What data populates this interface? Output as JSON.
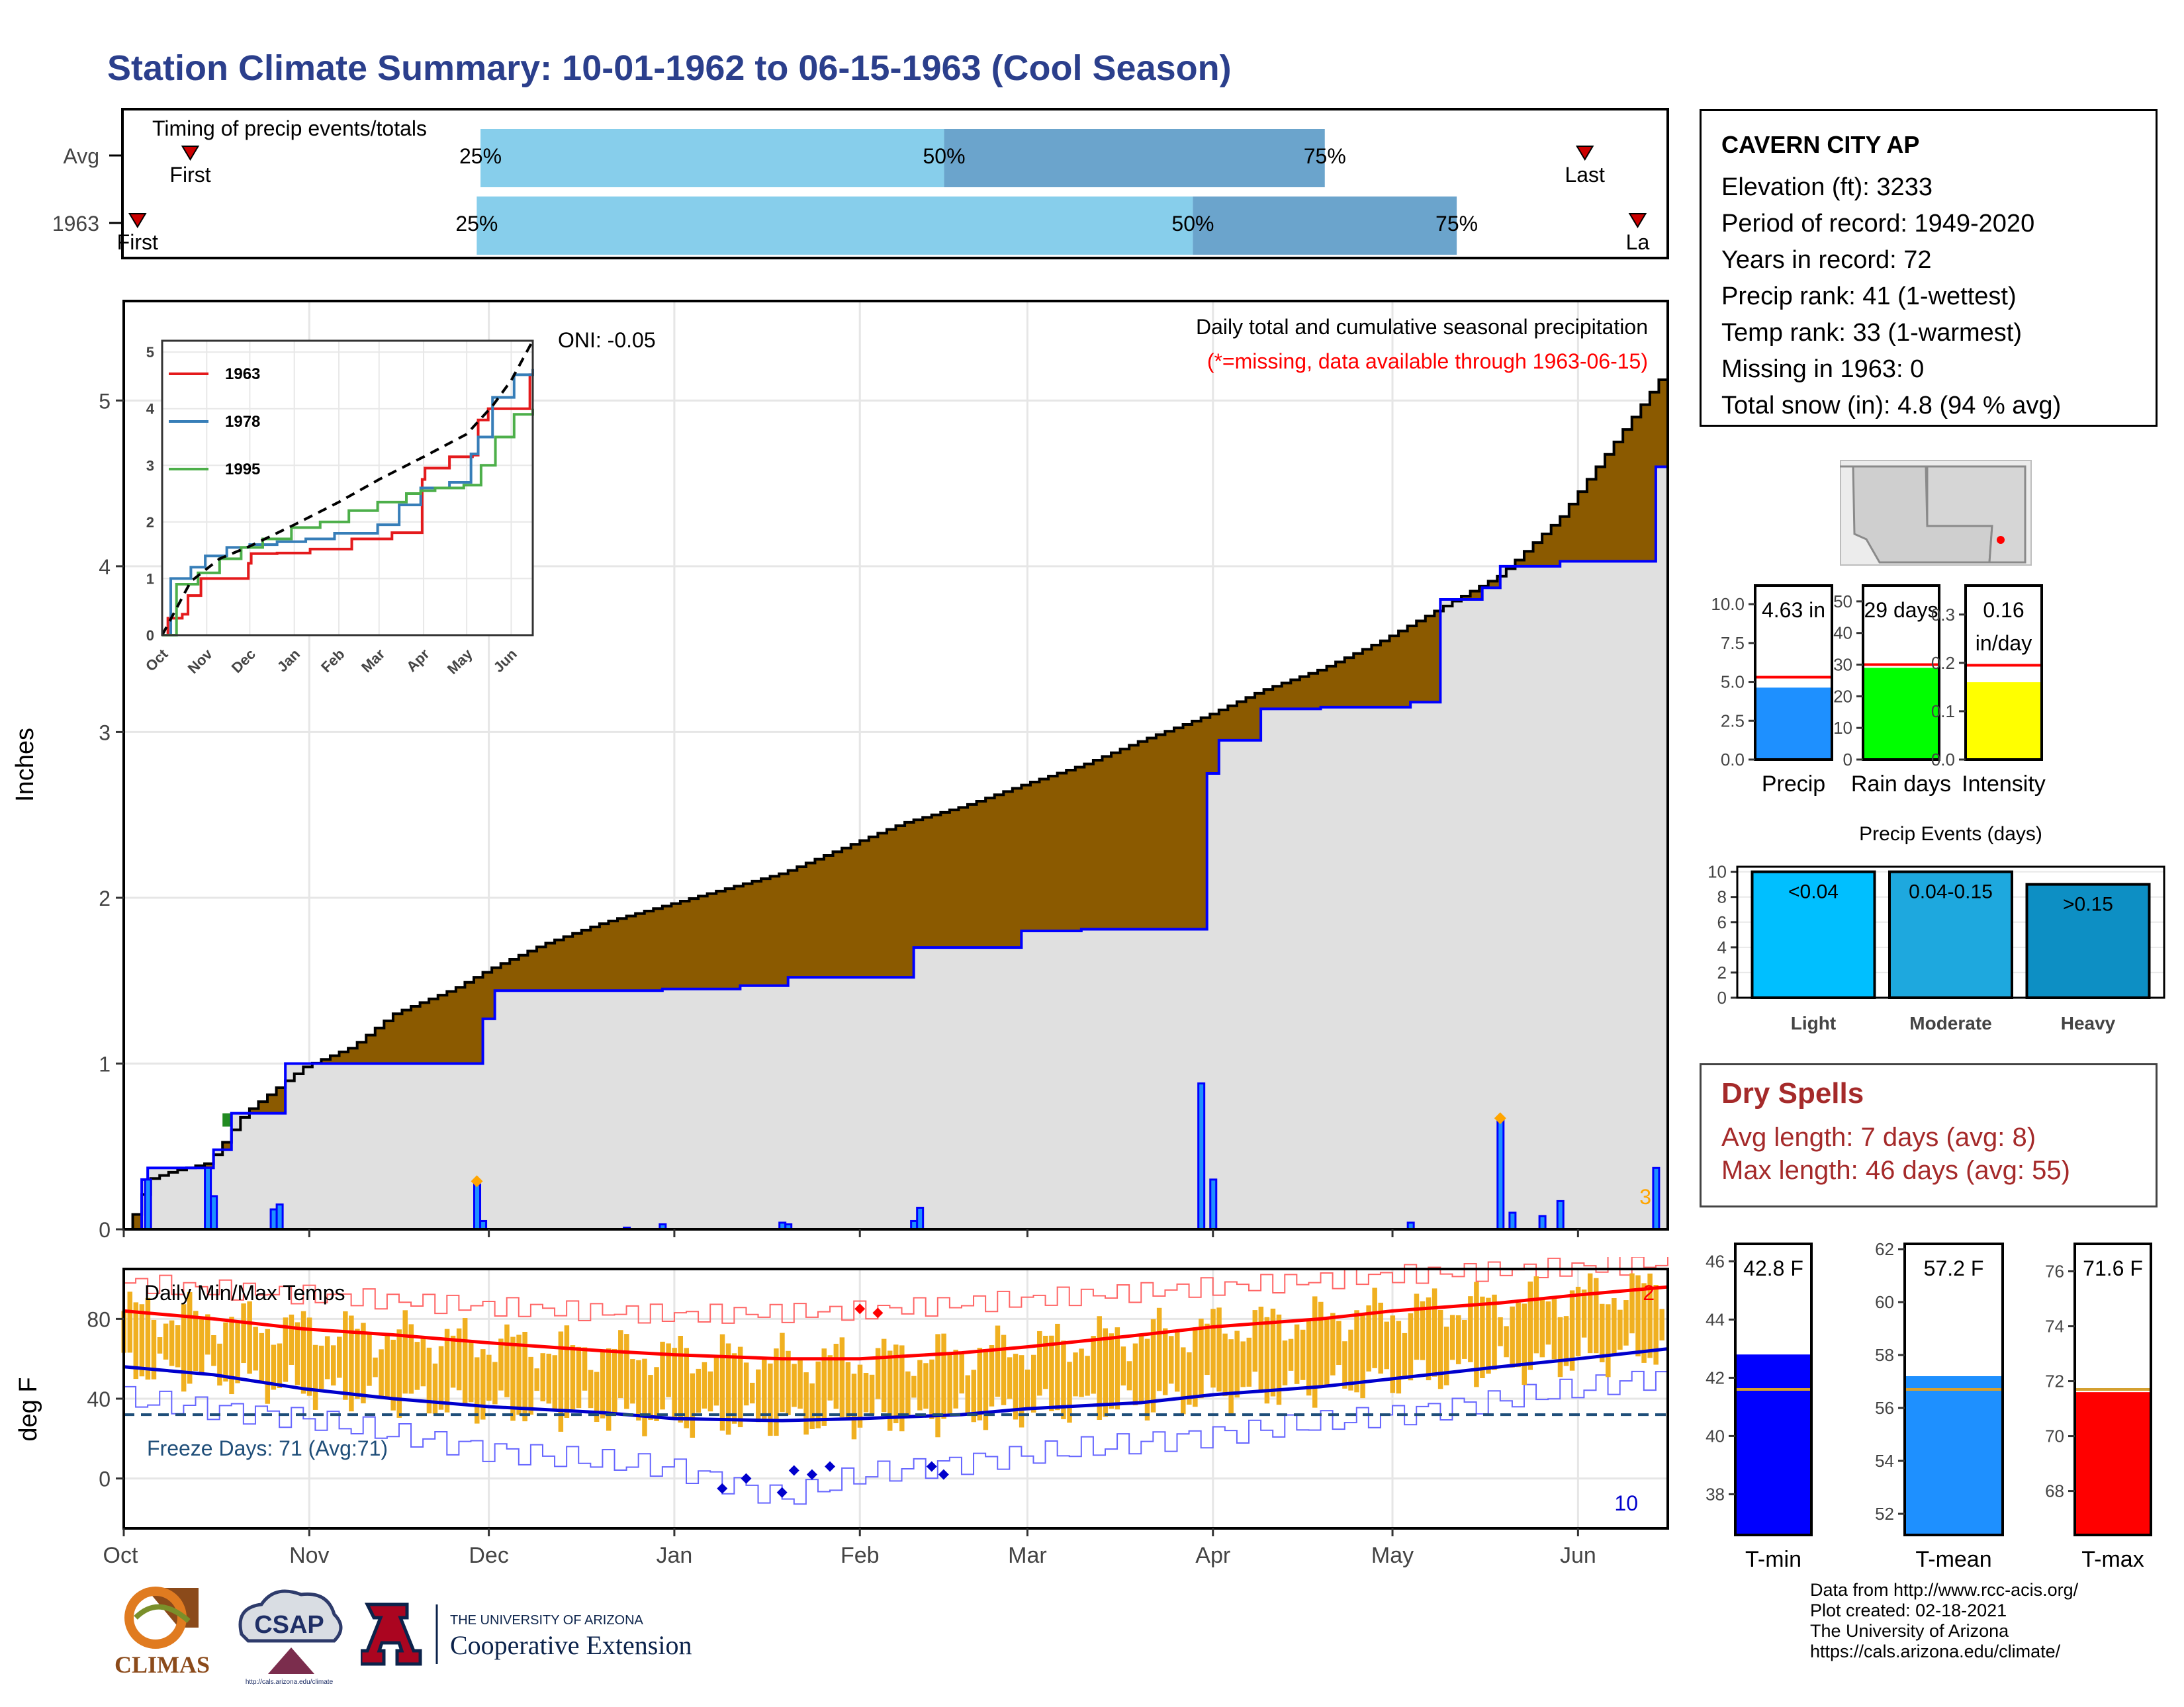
{
  "title": "Station Climate Summary: 10-01-1962 to 06-15-1963 (Cool Season)",
  "timing": {
    "title": "Timing of precip events/totals",
    "rows": [
      {
        "label": "Avg",
        "p25_day": 95,
        "p50_day": 218,
        "p75_day": 319,
        "first_day": 18,
        "last_day": 388,
        "first_label": "First",
        "last_label": "Last"
      },
      {
        "label": "1963",
        "p25_day": 94,
        "p50_day": 284,
        "p75_day": 354,
        "first_day": 4,
        "last_day": 402,
        "first_label": "First",
        "last_label": "La"
      }
    ],
    "pct_labels": [
      "25%",
      "50%",
      "75%"
    ]
  },
  "chart_data": [
    {
      "type": "area",
      "name": "cumulative-precip",
      "title": "Daily total and cumulative seasonal precipitation",
      "subtitle": "(*=missing, data available through 1963-06-15)",
      "ylabel": "Inches",
      "ylim": [
        0,
        5.6
      ],
      "yticks": [
        0,
        1,
        2,
        3,
        4,
        5
      ],
      "xlim_days": [
        0,
        258
      ],
      "x_month_labels": [
        "Oct",
        "Nov",
        "Dec",
        "Jan",
        "Feb",
        "Mar",
        "Apr",
        "May",
        "Jun"
      ],
      "x_month_days": [
        0,
        31,
        61,
        92,
        123,
        151,
        182,
        212,
        243
      ],
      "oni_label": "ONI: -0.05",
      "corner_count": "3",
      "avg_cumulative": {
        "x": [
          0,
          2,
          4,
          8,
          14,
          20,
          30,
          38,
          45,
          55,
          61,
          70,
          80,
          90,
          100,
          110,
          120,
          130,
          140,
          150,
          160,
          170,
          181,
          190,
          200,
          210,
          220,
          230,
          240,
          250,
          258
        ],
        "y": [
          0,
          0.12,
          0.3,
          0.35,
          0.4,
          0.7,
          0.98,
          1.1,
          1.3,
          1.45,
          1.57,
          1.72,
          1.85,
          1.95,
          2.05,
          2.15,
          2.3,
          2.45,
          2.55,
          2.68,
          2.8,
          2.95,
          3.1,
          3.25,
          3.38,
          3.55,
          3.75,
          3.95,
          4.3,
          4.8,
          5.2
        ]
      },
      "season_cumulative": {
        "x": [
          0,
          3,
          4,
          14,
          15,
          17,
          18,
          26,
          27,
          59,
          60,
          62,
          80,
          90,
          103,
          111,
          130,
          132,
          150,
          160,
          180,
          181,
          183,
          190,
          200,
          215,
          216,
          220,
          227,
          230,
          240,
          250,
          255,
          256,
          258
        ],
        "y": [
          0,
          0.3,
          0.37,
          0.37,
          0.48,
          0.48,
          0.7,
          0.7,
          1.0,
          1.0,
          1.27,
          1.44,
          1.44,
          1.45,
          1.47,
          1.52,
          1.52,
          1.7,
          1.8,
          1.81,
          1.81,
          2.75,
          2.95,
          3.14,
          3.15,
          3.18,
          3.18,
          3.8,
          3.87,
          4.0,
          4.03,
          4.03,
          4.03,
          4.6,
          4.6
        ]
      },
      "daily_bars": {
        "x": [
          4,
          14,
          15,
          25,
          26,
          59,
          60,
          84,
          90,
          110,
          111,
          132,
          133,
          180,
          182,
          215,
          230,
          232,
          237,
          240,
          256
        ],
        "y": [
          0.3,
          0.37,
          0.2,
          0.12,
          0.15,
          0.27,
          0.05,
          0.01,
          0.03,
          0.04,
          0.03,
          0.05,
          0.13,
          0.88,
          0.3,
          0.04,
          0.66,
          0.1,
          0.08,
          0.17,
          0.37
        ]
      }
    },
    {
      "type": "line",
      "name": "inset-cumulative",
      "ylim": [
        0,
        5.2
      ],
      "yticks": [
        0,
        1,
        2,
        3,
        4,
        5
      ],
      "x_month_labels": [
        "Oct",
        "Nov",
        "Dec",
        "Jan",
        "Feb",
        "Mar",
        "Apr",
        "May",
        "Jun"
      ],
      "series": [
        {
          "name": "1963",
          "color": "#e41a1c",
          "x": [
            0,
            4,
            14,
            18,
            27,
            60,
            62,
            80,
            103,
            132,
            160,
            181,
            183,
            200,
            216,
            220,
            227,
            256,
            258
          ],
          "y": [
            0,
            0.3,
            0.37,
            0.7,
            1.0,
            1.27,
            1.44,
            1.45,
            1.52,
            1.7,
            1.81,
            2.75,
            2.95,
            3.15,
            3.18,
            3.8,
            4.0,
            4.6,
            4.6
          ]
        },
        {
          "name": "1978",
          "color": "#377eb8",
          "x": [
            0,
            6,
            20,
            30,
            45,
            61,
            80,
            100,
            120,
            150,
            165,
            180,
            200,
            215,
            220,
            230,
            245,
            258
          ],
          "y": [
            0,
            1.0,
            1.2,
            1.4,
            1.55,
            1.6,
            1.65,
            1.7,
            1.8,
            1.95,
            2.3,
            2.6,
            2.7,
            3.2,
            3.5,
            4.2,
            4.6,
            4.7
          ]
        },
        {
          "name": "1995",
          "color": "#4daf4a",
          "x": [
            0,
            10,
            25,
            40,
            55,
            70,
            90,
            110,
            130,
            150,
            170,
            180,
            190,
            210,
            222,
            232,
            245,
            258
          ],
          "y": [
            0,
            0.9,
            1.1,
            1.35,
            1.55,
            1.7,
            1.9,
            2.0,
            2.2,
            2.35,
            2.5,
            2.55,
            2.6,
            2.65,
            3.0,
            3.5,
            3.9,
            4.0
          ]
        }
      ],
      "avg_series": {
        "x": [
          0,
          20,
          40,
          61,
          92,
          123,
          151,
          182,
          212,
          230,
          243,
          258
        ],
        "y": [
          0,
          0.95,
          1.35,
          1.57,
          1.95,
          2.35,
          2.75,
          3.15,
          3.55,
          4.05,
          4.5,
          5.2
        ]
      }
    },
    {
      "type": "bar",
      "name": "precip-gauge",
      "categories": [
        "Precip"
      ],
      "values": [
        4.63
      ],
      "avg": 5.3,
      "label": "4.63 in",
      "ylim": [
        0,
        11.2
      ],
      "yticks": [
        "0.0",
        "2.5",
        "5.0",
        "7.5",
        "10.0"
      ],
      "color": "#1e90ff"
    },
    {
      "type": "bar",
      "name": "raindays-gauge",
      "categories": [
        "Rain days"
      ],
      "values": [
        29
      ],
      "avg": 30,
      "label": "29 days",
      "ylim": [
        0,
        55
      ],
      "yticks": [
        "0",
        "10",
        "20",
        "30",
        "40",
        "50"
      ],
      "color": "#00ff00"
    },
    {
      "type": "bar",
      "name": "intensity-gauge",
      "categories": [
        "Intensity"
      ],
      "values": [
        0.16
      ],
      "avg": 0.195,
      "label_lines": [
        "0.16",
        "in/day"
      ],
      "ylim": [
        0,
        0.36
      ],
      "yticks": [
        "0.0",
        "0.1",
        "0.2",
        "0.3"
      ],
      "color": "#ffff00"
    },
    {
      "type": "bar",
      "name": "precip-events",
      "title": "Precip Events (days)",
      "categories": [
        "Light",
        "Moderate",
        "Heavy"
      ],
      "bar_labels": [
        "<0.04",
        "0.04-0.15",
        ">0.15"
      ],
      "values": [
        10,
        10,
        9
      ],
      "colors": [
        "#00bfff",
        "#1ea8de",
        "#0d8fc4"
      ],
      "ylim": [
        0,
        10.4
      ],
      "yticks": [
        "0",
        "2",
        "4",
        "6",
        "8",
        "10"
      ]
    },
    {
      "type": "line",
      "name": "daily-temps",
      "title": "Daily Min/Max Temps",
      "ylabel": "deg F",
      "ylim": [
        -25,
        105
      ],
      "yticks": [
        "0",
        "40",
        "80"
      ],
      "freeze_line": 32,
      "freeze_label": "Freeze Days: 71 (Avg:71)",
      "record_high_count": "2",
      "record_low_count": "10",
      "avg_max": {
        "x": [
          0,
          15,
          30,
          45,
          61,
          80,
          92,
          110,
          123,
          140,
          151,
          170,
          182,
          200,
          212,
          230,
          243,
          258
        ],
        "y": [
          84,
          80,
          75,
          72,
          68,
          64,
          62,
          60,
          60,
          63,
          66,
          72,
          76,
          80,
          84,
          88,
          92,
          96
        ]
      },
      "avg_min": {
        "x": [
          0,
          15,
          30,
          45,
          61,
          80,
          92,
          110,
          123,
          140,
          151,
          170,
          182,
          200,
          212,
          230,
          243,
          258
        ],
        "y": [
          56,
          52,
          45,
          40,
          36,
          33,
          30,
          29,
          30,
          32,
          35,
          38,
          42,
          46,
          50,
          56,
          60,
          65
        ]
      },
      "rec_max": {
        "x": [
          0,
          30,
          61,
          92,
          123,
          151,
          182,
          212,
          243,
          258
        ],
        "y": [
          98,
          92,
          86,
          82,
          84,
          90,
          96,
          102,
          106,
          108
        ]
      },
      "rec_min": {
        "x": [
          0,
          30,
          61,
          92,
          110,
          123,
          151,
          182,
          212,
          243,
          258
        ],
        "y": [
          40,
          30,
          14,
          5,
          -10,
          2,
          12,
          22,
          32,
          45,
          52
        ]
      }
    },
    {
      "type": "bar",
      "name": "tmin-gauge",
      "categories": [
        "T-min"
      ],
      "values": [
        42.8
      ],
      "avg": 41.6,
      "label": "42.8 F",
      "ylim": [
        36.6,
        46.6
      ],
      "yticks": [
        "38",
        "40",
        "42",
        "44",
        "46"
      ],
      "color": "#0000ff"
    },
    {
      "type": "bar",
      "name": "tmean-gauge",
      "categories": [
        "T-mean"
      ],
      "values": [
        57.2
      ],
      "avg": 56.7,
      "label": "57.2 F",
      "ylim": [
        51.2,
        62.2
      ],
      "yticks": [
        "52",
        "54",
        "56",
        "58",
        "60",
        "62"
      ],
      "color": "#1e90ff"
    },
    {
      "type": "bar",
      "name": "tmax-gauge",
      "categories": [
        "T-max"
      ],
      "values": [
        71.6
      ],
      "avg": 71.7,
      "label": "71.6 F",
      "ylim": [
        66.4,
        77.0
      ],
      "yticks": [
        "68",
        "70",
        "72",
        "74",
        "76"
      ],
      "color": "#ff0000"
    }
  ],
  "station": {
    "name": "CAVERN CITY AP",
    "lines": [
      "Elevation (ft): 3233",
      "Period of record: 1949-2020",
      "Years in record: 72",
      "Precip rank: 41 (1-wettest)",
      "Temp rank: 33 (1-warmest)",
      "Missing in 1963: 0",
      "Total snow (in): 4.8 (94 % avg)"
    ]
  },
  "dry_spells": {
    "title": "Dry Spells",
    "avg_line": "Avg length: 7 days (avg: 8)",
    "max_line": "Max length: 46 days (avg: 55)"
  },
  "footer": [
    "Data from http://www.rcc-acis.org/",
    "Plot created: 02-18-2021",
    "The University of Arizona",
    "https://cals.arizona.edu/climate/"
  ],
  "logos": {
    "climas": "CLIMAS",
    "csap": "CSAP",
    "csap_url": "http://cals.arizona.edu/climate",
    "ua_line1": "THE UNIVERSITY OF ARIZONA",
    "ua_line2": "Cooperative Extension"
  },
  "colors": {
    "title": "#2b3f8c",
    "surplus": "#8b5a00",
    "deficit": "#228b22",
    "bars": "#0000ff",
    "bar_fill": "#1e90ff",
    "tmax": "#ff0000",
    "tmin": "#0000cc",
    "temp_bars": "#f0b020",
    "freeze": "#1f4e79",
    "missing": "#ff0000"
  }
}
